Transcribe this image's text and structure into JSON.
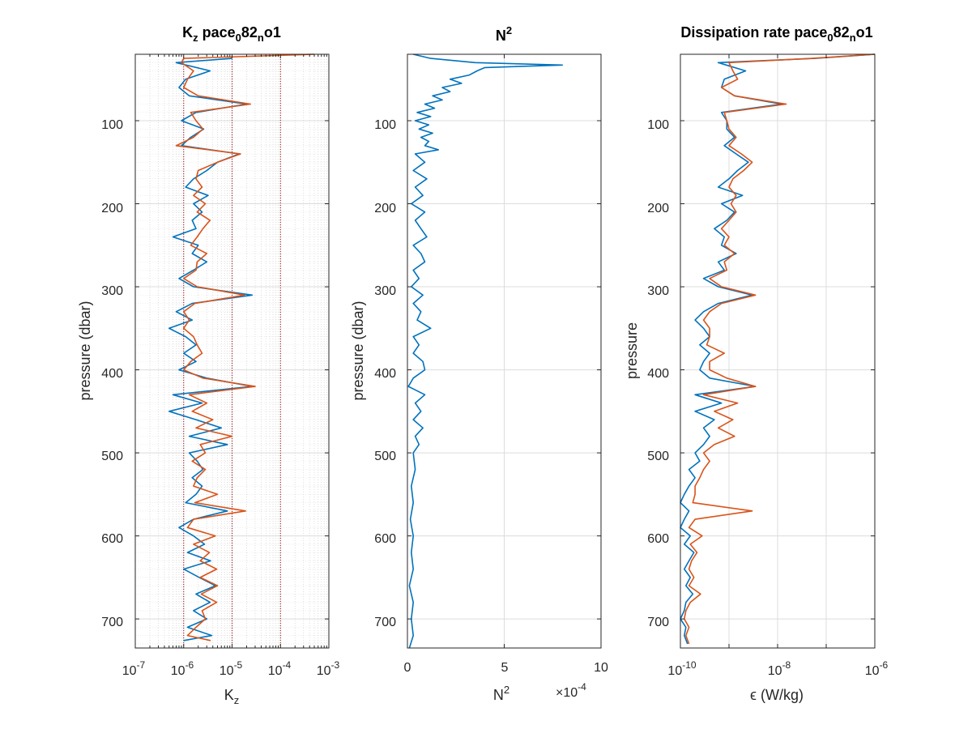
{
  "chart_data": [
    {
      "type": "line",
      "title": {
        "base": "K",
        "sub": "z",
        "rest": " pace",
        "sub2": "0",
        "rest2": "82",
        "sub3": "n",
        "rest3": "o1"
      },
      "xlabel": {
        "base": "K",
        "sub": "z"
      },
      "ylabel": "pressure (dbar)",
      "xscale": "log",
      "xlim": [
        1e-07,
        0.001
      ],
      "ylim": [
        20,
        735
      ],
      "y_reversed": true,
      "grid": "on (major + minor)",
      "xticks": [
        {
          "base": "10",
          "exp": "-7"
        },
        {
          "base": "10",
          "exp": "-6"
        },
        {
          "base": "10",
          "exp": "-5"
        },
        {
          "base": "10",
          "exp": "-4"
        },
        {
          "base": "10",
          "exp": "-3"
        }
      ],
      "yticks": [
        "100",
        "200",
        "300",
        "400",
        "500",
        "600",
        "700"
      ],
      "reference_lines_x": [
        1e-06,
        1e-05,
        0.0001
      ],
      "reference_line_color": "#aa0000",
      "series": [
        {
          "color": "#0072BD",
          "y": [
            25,
            30,
            40,
            50,
            60,
            70,
            80,
            90,
            100,
            110,
            120,
            130,
            140,
            150,
            160,
            170,
            180,
            190,
            200,
            210,
            220,
            230,
            240,
            250,
            260,
            270,
            280,
            290,
            300,
            310,
            320,
            330,
            340,
            350,
            360,
            370,
            380,
            390,
            400,
            410,
            420,
            430,
            440,
            450,
            460,
            470,
            480,
            490,
            500,
            510,
            520,
            530,
            540,
            550,
            560,
            570,
            580,
            590,
            600,
            610,
            620,
            630,
            640,
            650,
            660,
            670,
            680,
            690,
            700,
            710,
            720,
            726
          ],
          "x": [
            1e-05,
            7e-07,
            3.5e-06,
            1.1e-06,
            8e-07,
            1.3e-06,
            2e-05,
            1.8e-06,
            9e-07,
            2.6e-06,
            1.4e-06,
            9e-07,
            1.4e-05,
            5e-06,
            3e-06,
            1.6e-06,
            1.1e-06,
            3.2e-06,
            1.6e-06,
            2.4e-06,
            1.5e-06,
            1.8e-06,
            6e-07,
            2e-06,
            1.5e-06,
            3e-06,
            1.6e-06,
            8e-07,
            1.6e-06,
            2.6e-05,
            1.5e-06,
            7e-07,
            1.5e-06,
            5e-07,
            1.1e-06,
            1.8e-06,
            1e-06,
            1.8e-06,
            8e-07,
            3e-06,
            2.6e-05,
            6e-07,
            2.4e-06,
            5e-07,
            1.8e-06,
            6e-06,
            1.3e-06,
            8e-06,
            1.3e-06,
            1.9e-06,
            2.5e-06,
            1.5e-06,
            2.4e-06,
            1.8e-06,
            1.1e-06,
            8e-06,
            1.6e-06,
            8e-07,
            1.6e-06,
            2.7e-06,
            1.2e-06,
            3.6e-06,
            1e-06,
            2.1e-06,
            4.5e-06,
            1.8e-06,
            3.5e-06,
            1.6e-06,
            3e-06,
            1.2e-06,
            3.8e-06,
            1e-06
          ]
        },
        {
          "color": "#D95319",
          "y": [
            20,
            25,
            30,
            40,
            50,
            60,
            70,
            80,
            90,
            100,
            110,
            120,
            130,
            140,
            150,
            160,
            170,
            180,
            190,
            200,
            210,
            220,
            230,
            240,
            250,
            260,
            270,
            280,
            290,
            300,
            310,
            320,
            330,
            340,
            350,
            360,
            370,
            380,
            390,
            400,
            410,
            420,
            430,
            440,
            450,
            460,
            470,
            480,
            490,
            500,
            510,
            520,
            530,
            540,
            550,
            560,
            570,
            580,
            590,
            600,
            610,
            620,
            630,
            640,
            650,
            660,
            670,
            680,
            690,
            700,
            710,
            720,
            726
          ],
          "x": [
            0.0005,
            1e-06,
            9e-07,
            1.6e-06,
            1.2e-06,
            1e-06,
            2e-06,
            2.4e-05,
            1.4e-06,
            1.8e-06,
            2.5e-06,
            1.6e-06,
            7e-07,
            1.5e-05,
            5e-06,
            2e-06,
            1.8e-06,
            2.4e-06,
            1.6e-06,
            2.8e-06,
            1.9e-06,
            3.5e-06,
            2.5e-06,
            1.9e-06,
            1.4e-06,
            3e-06,
            1.9e-06,
            1.8e-06,
            1e-06,
            1.9e-06,
            1.8e-05,
            1.7e-06,
            1e-06,
            1.3e-06,
            1e-06,
            1.6e-06,
            1.9e-06,
            2.4e-06,
            1.4e-06,
            1e-06,
            2.5e-06,
            3e-05,
            1.3e-06,
            3e-06,
            1.5e-06,
            4e-06,
            1.8e-06,
            1e-05,
            2.2e-06,
            2.8e-06,
            1.5e-06,
            2.8e-06,
            1.9e-06,
            1.6e-06,
            5e-06,
            1.7e-06,
            1.9e-05,
            1.6e-06,
            1.2e-06,
            4.5e-06,
            1.6e-06,
            3.4e-06,
            2.2e-06,
            4.8e-06,
            2.2e-06,
            5e-06,
            2.3e-06,
            4.8e-06,
            2.4e-06,
            2.8e-06,
            1.8e-06,
            1.2e-06,
            3.6e-06
          ]
        }
      ]
    },
    {
      "type": "line",
      "title": {
        "base": "N",
        "exp": "2"
      },
      "xlabel": {
        "base": "N",
        "exp": "2"
      },
      "ylabel": "pressure (dbar)",
      "xscale": "linear",
      "xlim": [
        0,
        10
      ],
      "ylim": [
        20,
        735
      ],
      "y_reversed": true,
      "grid": "on",
      "xticks": [
        "0",
        "5",
        "10"
      ],
      "yticks": [
        "100",
        "200",
        "300",
        "400",
        "500",
        "600",
        "700"
      ],
      "exponent_label": {
        "prefix": "×10",
        "exp": "-4"
      },
      "series": [
        {
          "color": "#0072BD",
          "y": [
            20,
            25,
            30,
            33,
            36,
            40,
            45,
            50,
            55,
            60,
            65,
            70,
            75,
            80,
            85,
            90,
            95,
            100,
            105,
            110,
            115,
            120,
            125,
            130,
            135,
            140,
            150,
            160,
            170,
            180,
            190,
            200,
            210,
            220,
            230,
            240,
            250,
            260,
            270,
            280,
            290,
            300,
            310,
            320,
            330,
            340,
            350,
            360,
            370,
            380,
            390,
            400,
            410,
            420,
            430,
            440,
            450,
            460,
            470,
            480,
            490,
            500,
            520,
            540,
            560,
            580,
            600,
            620,
            640,
            660,
            680,
            700,
            720,
            735
          ],
          "x": [
            0.3,
            1.2,
            3.5,
            8,
            4,
            3.6,
            3.2,
            2.2,
            2.8,
            1.8,
            2.2,
            1.3,
            1.8,
            0.9,
            1.4,
            0.5,
            1.2,
            0.4,
            1.1,
            0.6,
            1.3,
            0.7,
            1.1,
            0.9,
            1.6,
            0.4,
            0.9,
            0.3,
            1.0,
            0.4,
            0.8,
            0.2,
            0.9,
            0.4,
            0.7,
            1.0,
            0.3,
            0.7,
            0.9,
            0.3,
            0.6,
            0.2,
            0.8,
            0.3,
            0.7,
            0.5,
            1.2,
            0.3,
            0.6,
            0.3,
            0.8,
            0.9,
            0.3,
            0.05,
            0.9,
            0.4,
            0.7,
            0.3,
            0.8,
            0.4,
            0.6,
            0.3,
            0.4,
            0.2,
            0.3,
            0.15,
            0.3,
            0.2,
            0.3,
            0.1,
            0.3,
            0.2,
            0.3,
            0.1
          ]
        }
      ]
    },
    {
      "type": "line",
      "title": {
        "base": "Dissipation rate pace",
        "sub": "0",
        "rest": "82",
        "sub2": "n",
        "rest2": "o1"
      },
      "xlabel": "ϵ (W/kg)",
      "ylabel": "pressure",
      "xscale": "log",
      "xlim": [
        1e-10,
        1e-06
      ],
      "ylim": [
        20,
        735
      ],
      "y_reversed": true,
      "grid": "on",
      "xticks": [
        {
          "base": "10",
          "exp": "-10"
        },
        {
          "base": "10",
          "exp": "-8"
        },
        {
          "base": "10",
          "exp": "-6"
        }
      ],
      "yticks": [
        "100",
        "200",
        "300",
        "400",
        "500",
        "600",
        "700"
      ],
      "series": [
        {
          "color": "#0072BD",
          "y": [
            20,
            25,
            30,
            40,
            50,
            60,
            70,
            80,
            90,
            100,
            110,
            120,
            130,
            140,
            150,
            160,
            170,
            180,
            190,
            200,
            210,
            220,
            230,
            240,
            250,
            260,
            270,
            280,
            290,
            300,
            310,
            320,
            330,
            340,
            350,
            360,
            370,
            380,
            390,
            400,
            410,
            420,
            430,
            440,
            450,
            460,
            470,
            480,
            490,
            500,
            510,
            520,
            530,
            540,
            550,
            560,
            570,
            580,
            590,
            600,
            610,
            620,
            630,
            640,
            650,
            660,
            670,
            680,
            690,
            700,
            710,
            720,
            730
          ],
          "x": [
            1e-06,
            6e-08,
            6e-10,
            2.2e-09,
            8e-10,
            7e-10,
            1.3e-09,
            1.2e-08,
            7e-10,
            9e-10,
            9e-10,
            1.3e-09,
            8e-10,
            1.4e-09,
            2.5e-09,
            1.5e-09,
            1e-09,
            6e-10,
            1.9e-09,
            7e-10,
            1.3e-09,
            9e-10,
            5e-10,
            8e-10,
            7e-10,
            1.4e-09,
            6e-10,
            8e-10,
            3e-10,
            6e-10,
            3e-09,
            6e-10,
            3e-10,
            2e-10,
            3e-10,
            4e-10,
            2.5e-10,
            4e-10,
            3e-10,
            2.5e-10,
            4e-10,
            3.5e-09,
            2e-10,
            7e-10,
            2e-10,
            5e-10,
            3e-10,
            4e-10,
            3e-10,
            2e-10,
            2.5e-10,
            1.5e-10,
            2e-10,
            1.5e-10,
            1.2e-10,
            1e-10,
            1.5e-10,
            1.2e-10,
            1e-10,
            1.6e-10,
            1.2e-10,
            1.9e-10,
            1.5e-10,
            1.2e-10,
            1.6e-10,
            1.3e-10,
            1.8e-10,
            1.3e-10,
            1.2e-10,
            1e-10,
            1.3e-10,
            1.2e-10,
            1.4e-10
          ]
        },
        {
          "color": "#D95319",
          "y": [
            20,
            25,
            30,
            40,
            50,
            60,
            70,
            80,
            90,
            100,
            110,
            120,
            130,
            140,
            150,
            160,
            170,
            180,
            190,
            200,
            210,
            220,
            230,
            240,
            250,
            260,
            270,
            280,
            290,
            300,
            310,
            320,
            330,
            340,
            350,
            360,
            370,
            380,
            390,
            400,
            410,
            420,
            430,
            440,
            450,
            460,
            470,
            480,
            490,
            500,
            510,
            520,
            530,
            540,
            550,
            560,
            570,
            580,
            590,
            600,
            610,
            620,
            630,
            640,
            650,
            660,
            670,
            680,
            690,
            700,
            710,
            720,
            730
          ],
          "x": [
            1e-06,
            5e-08,
            1e-09,
            1.2e-09,
            1.5e-09,
            7e-10,
            1.3e-09,
            1.5e-08,
            8e-10,
            9e-10,
            1e-09,
            1.4e-09,
            1e-09,
            1.8e-09,
            3e-09,
            2e-09,
            1.2e-09,
            1e-09,
            1.4e-09,
            1.1e-09,
            1.4e-09,
            1e-09,
            7e-10,
            1e-09,
            8e-10,
            1.3e-09,
            8e-10,
            9e-10,
            4e-10,
            7e-10,
            3.5e-09,
            7e-10,
            4e-10,
            3e-10,
            4e-10,
            4e-10,
            3.5e-10,
            8e-10,
            4e-10,
            4e-10,
            9e-10,
            3.5e-09,
            3e-10,
            1.5e-09,
            5e-10,
            1.2e-09,
            6e-10,
            1.3e-09,
            5e-10,
            3e-10,
            4e-10,
            3e-10,
            2.5e-10,
            2e-10,
            2e-10,
            1.8e-10,
            3e-09,
            2e-10,
            1.5e-10,
            2.8e-10,
            1.6e-10,
            2.2e-10,
            1.7e-10,
            1.5e-10,
            1.9e-10,
            1.5e-10,
            2.6e-10,
            1.6e-10,
            1.3e-10,
            1.2e-10,
            1.5e-10,
            1.3e-10,
            1.5e-10
          ]
        }
      ]
    }
  ]
}
